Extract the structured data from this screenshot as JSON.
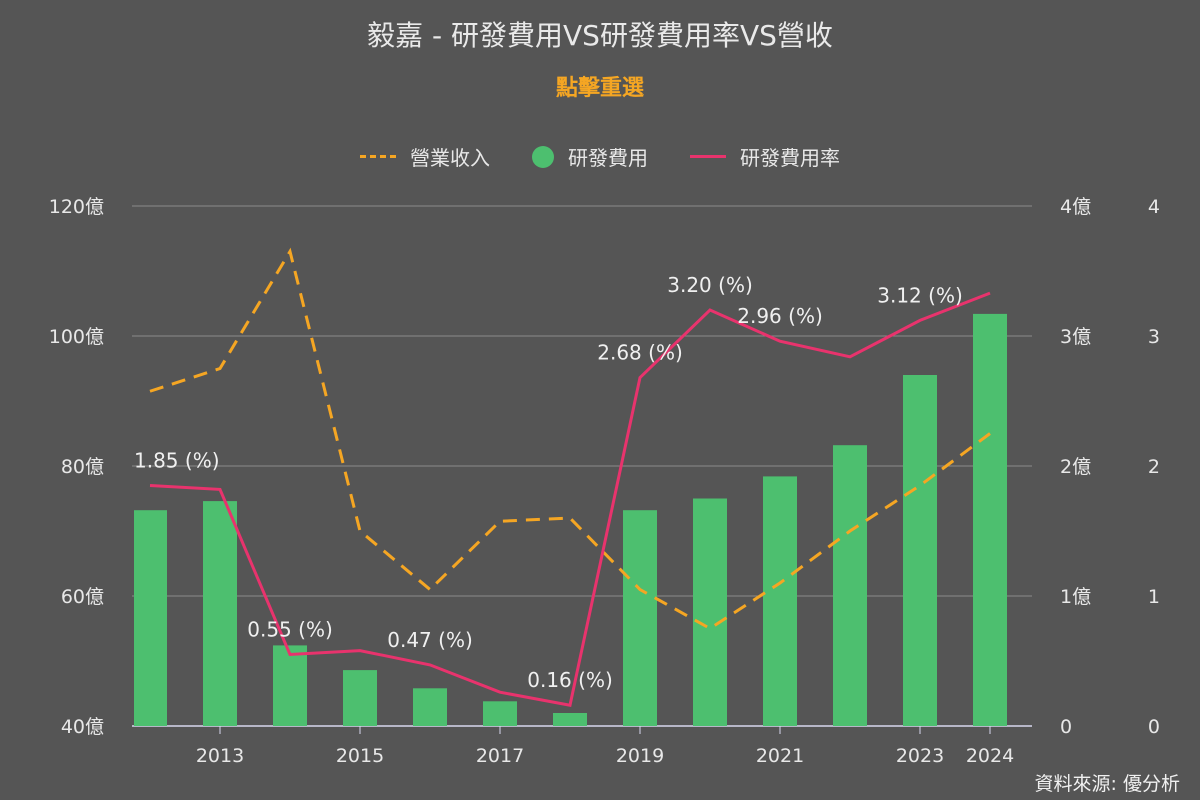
{
  "title": "毅嘉 - 研發費用VS研發費用率VS營收",
  "subtitle": "點擊重選",
  "source": "資料來源: 優分析",
  "legend": [
    {
      "label": "營業收入",
      "style": "dash",
      "color": "#f5a623"
    },
    {
      "label": "研發費用",
      "style": "dot",
      "color": "#4dbf6f"
    },
    {
      "label": "研發費用率",
      "style": "line",
      "color": "#e8336d"
    }
  ],
  "chart_data": {
    "type": "bar",
    "x": [
      2012,
      2013,
      2014,
      2015,
      2016,
      2017,
      2018,
      2019,
      2020,
      2021,
      2022,
      2023,
      2024
    ],
    "x_tick_labels": [
      "2013",
      "2015",
      "2017",
      "2019",
      "2021",
      "2023",
      "2024"
    ],
    "left_axis": {
      "range": [
        40,
        120
      ],
      "ticks": [
        "40億",
        "60億",
        "80億",
        "100億",
        "120億"
      ]
    },
    "middle_axis": {
      "range": [
        0,
        4
      ],
      "ticks": [
        "0",
        "1億",
        "2億",
        "3億",
        "4億"
      ]
    },
    "right_axis": {
      "range": [
        0,
        4
      ],
      "ticks": [
        "0",
        "1",
        "2",
        "3",
        "4"
      ]
    },
    "series": [
      {
        "name": "營業收入",
        "type": "line-dashed",
        "axis": "left",
        "color": "#f5a623",
        "values": [
          91.5,
          95,
          113,
          70,
          61,
          71.5,
          72,
          61,
          55,
          62,
          70,
          77,
          85
        ]
      },
      {
        "name": "研發費用",
        "type": "bar",
        "axis": "middle",
        "color": "#4dbf6f",
        "values": [
          1.66,
          1.73,
          0.62,
          0.43,
          0.29,
          0.19,
          0.1,
          1.66,
          1.75,
          1.92,
          2.16,
          2.7,
          3.17
        ]
      },
      {
        "name": "研發費用率",
        "type": "line",
        "axis": "right",
        "color": "#e8336d",
        "values": [
          1.85,
          1.82,
          0.55,
          0.58,
          0.47,
          0.26,
          0.16,
          2.68,
          3.2,
          2.96,
          2.84,
          3.12,
          3.33
        ]
      }
    ],
    "data_labels": [
      {
        "index": 0,
        "text": "1.85 (%)"
      },
      {
        "index": 2,
        "text": "0.55 (%)"
      },
      {
        "index": 4,
        "text": "0.47 (%)"
      },
      {
        "index": 6,
        "text": "0.16 (%)"
      },
      {
        "index": 7,
        "text": "2.68 (%)"
      },
      {
        "index": 8,
        "text": "3.20 (%)"
      },
      {
        "index": 9,
        "text": "2.96 (%)"
      },
      {
        "index": 11,
        "text": "3.12 (%)"
      }
    ],
    "grid": true,
    "legend_position": "top-center"
  }
}
